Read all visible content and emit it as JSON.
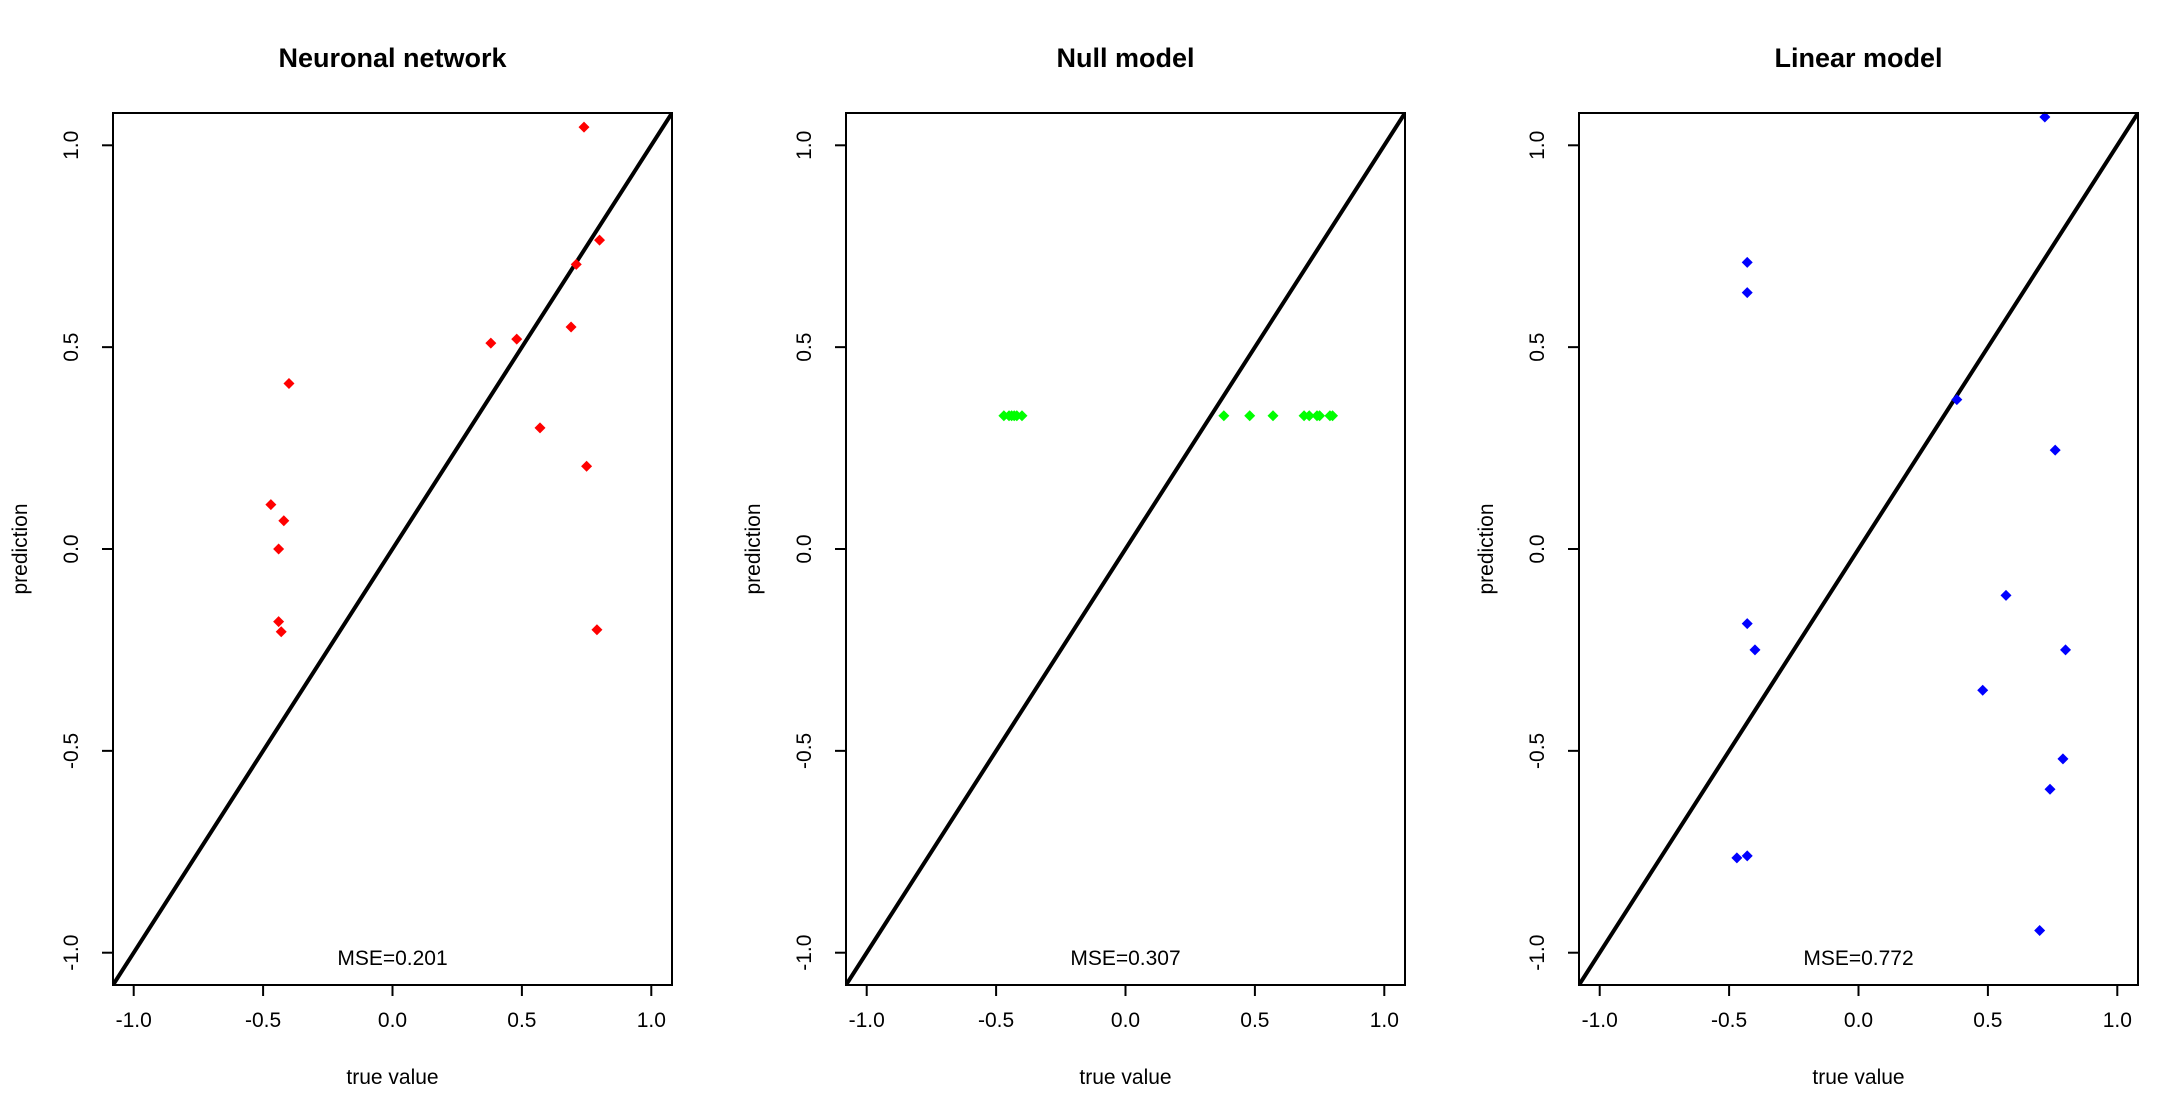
{
  "chart_data": [
    {
      "type": "scatter",
      "title": "Neuronal network",
      "xlabel": "true value",
      "ylabel": "prediction",
      "xlim": [
        -1.08,
        1.08
      ],
      "ylim": [
        -1.08,
        1.08
      ],
      "xticks": [
        -1.0,
        -0.5,
        0.0,
        0.5,
        1.0
      ],
      "yticks": [
        -1.0,
        -0.5,
        0.0,
        0.5,
        1.0
      ],
      "xtick_labels": [
        "-1.0",
        "-0.5",
        "0.0",
        "0.5",
        "1.0"
      ],
      "ytick_labels": [
        "-1.0",
        "-0.5",
        "0.0",
        "0.5",
        "1.0"
      ],
      "reference_line": "y = x",
      "annotation": "MSE=0.201",
      "color": "#ff0000",
      "series": [
        {
          "x": [
            0.74,
            0.8,
            0.71,
            0.38,
            0.48,
            0.69,
            0.57,
            0.75,
            0.79,
            -0.4,
            -0.47,
            -0.42,
            -0.44,
            -0.44,
            -0.43
          ],
          "y": [
            1.045,
            0.765,
            0.705,
            0.51,
            0.52,
            0.55,
            0.3,
            0.205,
            -0.2,
            0.41,
            0.11,
            0.07,
            0.0,
            -0.18,
            -0.205
          ]
        }
      ]
    },
    {
      "type": "scatter",
      "title": "Null model",
      "xlabel": "true value",
      "ylabel": "prediction",
      "xlim": [
        -1.08,
        1.08
      ],
      "ylim": [
        -1.08,
        1.08
      ],
      "xticks": [
        -1.0,
        -0.5,
        0.0,
        0.5,
        1.0
      ],
      "yticks": [
        -1.0,
        -0.5,
        0.0,
        0.5,
        1.0
      ],
      "xtick_labels": [
        "-1.0",
        "-0.5",
        "0.0",
        "0.5",
        "1.0"
      ],
      "ytick_labels": [
        "-1.0",
        "-0.5",
        "0.0",
        "0.5",
        "1.0"
      ],
      "reference_line": "y = x",
      "annotation": "MSE=0.307",
      "color": "#00ff00",
      "series": [
        {
          "x": [
            -0.47,
            -0.45,
            -0.44,
            -0.43,
            -0.42,
            -0.4,
            0.38,
            0.48,
            0.57,
            0.69,
            0.71,
            0.74,
            0.75,
            0.79,
            0.8
          ],
          "y": [
            0.33,
            0.33,
            0.33,
            0.33,
            0.33,
            0.33,
            0.33,
            0.33,
            0.33,
            0.33,
            0.33,
            0.33,
            0.33,
            0.33,
            0.33
          ]
        }
      ]
    },
    {
      "type": "scatter",
      "title": "Linear model",
      "xlabel": "true value",
      "ylabel": "prediction",
      "xlim": [
        -1.08,
        1.08
      ],
      "ylim": [
        -1.08,
        1.08
      ],
      "xticks": [
        -1.0,
        -0.5,
        0.0,
        0.5,
        1.0
      ],
      "yticks": [
        -1.0,
        -0.5,
        0.0,
        0.5,
        1.0
      ],
      "xtick_labels": [
        "-1.0",
        "-0.5",
        "0.0",
        "0.5",
        "1.0"
      ],
      "ytick_labels": [
        "-1.0",
        "-0.5",
        "0.0",
        "0.5",
        "1.0"
      ],
      "reference_line": "y = x",
      "annotation": "MSE=0.772",
      "color": "#0000ff",
      "series": [
        {
          "x": [
            0.72,
            -0.43,
            -0.43,
            0.38,
            0.76,
            0.57,
            -0.43,
            -0.4,
            0.8,
            0.48,
            0.79,
            0.74,
            -0.47,
            -0.43,
            0.7
          ],
          "y": [
            1.07,
            0.71,
            0.635,
            0.37,
            0.245,
            -0.115,
            -0.185,
            -0.25,
            -0.25,
            -0.35,
            -0.52,
            -0.595,
            -0.765,
            -0.76,
            -0.945
          ]
        }
      ]
    }
  ]
}
